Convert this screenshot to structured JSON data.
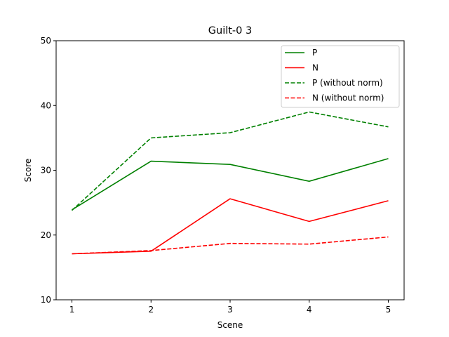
{
  "chart_data": {
    "type": "line",
    "title": "Guilt-0 3",
    "xlabel": "Scene",
    "ylabel": "Score",
    "x": [
      1,
      2,
      3,
      4,
      5
    ],
    "xlim": [
      0.8,
      5.2
    ],
    "ylim": [
      10,
      50
    ],
    "xticks": [
      "1",
      "2",
      "3",
      "4",
      "5"
    ],
    "yticks": [
      "10",
      "20",
      "30",
      "40",
      "50"
    ],
    "grid": false,
    "legend_position": "top-right",
    "series": [
      {
        "name": "P",
        "values": [
          23.9,
          31.4,
          30.9,
          28.3,
          31.8
        ],
        "color": "#008000",
        "style": "solid"
      },
      {
        "name": "N",
        "values": [
          17.1,
          17.5,
          25.6,
          22.1,
          25.3
        ],
        "color": "#ff0000",
        "style": "solid"
      },
      {
        "name": "P (without norm)",
        "values": [
          23.8,
          35.0,
          35.8,
          39.0,
          36.7
        ],
        "color": "#008000",
        "style": "dashed"
      },
      {
        "name": "N (without norm)",
        "values": [
          17.1,
          17.6,
          18.7,
          18.6,
          19.7
        ],
        "color": "#ff0000",
        "style": "dashed"
      }
    ]
  }
}
